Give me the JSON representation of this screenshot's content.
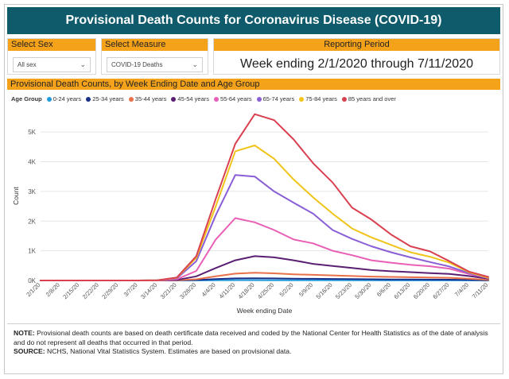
{
  "title": "Provisional Death Counts for Coronavirus Disease (COVID-19)",
  "filters": {
    "sex": {
      "label": "Select Sex",
      "value": "All sex"
    },
    "measure": {
      "label": "Select Measure",
      "value": "COVID-19 Deaths"
    },
    "period": {
      "label": "Reporting Period",
      "value": "Week ending 2/1/2020 through 7/11/2020"
    }
  },
  "chart_header": "Provisional Death Counts, by Week Ending Date and Age Group",
  "notes": {
    "note_label": "NOTE:",
    "note_text": "Provisional death counts are based on death certificate data received and coded by the National Center for Health Statistics as of the date of analysis and do not represent all deaths that occurred in that period.",
    "source_label": "SOURCE:",
    "source_text": "NCHS, National Vital Statistics System. Estimates are based on provisional data."
  },
  "chart_data": {
    "type": "line",
    "title": "Provisional Death Counts, by Week Ending Date and Age Group",
    "legend_title": "Age Group",
    "xlabel": "Week ending Date",
    "ylabel": "Count",
    "ylim": [
      0,
      5700
    ],
    "y_ticks": [
      0,
      1000,
      2000,
      3000,
      4000,
      5000
    ],
    "y_tick_labels": [
      "0K",
      "1K",
      "2K",
      "3K",
      "4K",
      "5K"
    ],
    "x": [
      "2/1/20",
      "2/8/20",
      "2/15/20",
      "2/22/20",
      "2/29/20",
      "3/7/20",
      "3/14/20",
      "3/21/20",
      "3/28/20",
      "4/4/20",
      "4/11/20",
      "4/18/20",
      "4/25/20",
      "5/2/20",
      "5/9/20",
      "5/16/20",
      "5/23/20",
      "5/30/20",
      "6/6/20",
      "6/13/20",
      "6/20/20",
      "6/27/20",
      "7/4/20",
      "7/11/20"
    ],
    "x_tick_labels": [
      "2/1/20",
      "2/8/20",
      "2/15/20",
      "2/22/20",
      "2/29/20",
      "3/7/20",
      "3/14/20",
      "3/21/20",
      "3/28/20",
      "4/4/20",
      "4/11/20",
      "4/18/20",
      "4/25/20",
      "5/2/20",
      "5/9/20",
      "5/16/20",
      "5/23/20",
      "5/30/20",
      "6/6/20",
      "6/13/20",
      "6/20/20",
      "6/27/20",
      "7/4/20",
      "7/11/20"
    ],
    "series": [
      {
        "name": "0-24 years",
        "color": "#1f9bde",
        "values": [
          0,
          0,
          0,
          0,
          0,
          0,
          0,
          1,
          4,
          8,
          10,
          10,
          9,
          8,
          7,
          6,
          5,
          5,
          4,
          4,
          4,
          4,
          3,
          1
        ]
      },
      {
        "name": "25-34 years",
        "color": "#1a2f8a",
        "values": [
          0,
          0,
          0,
          0,
          0,
          0,
          0,
          3,
          15,
          45,
          70,
          75,
          70,
          60,
          55,
          50,
          45,
          40,
          35,
          33,
          30,
          28,
          20,
          8
        ]
      },
      {
        "name": "35-44 years",
        "color": "#e8704a",
        "values": [
          0,
          0,
          0,
          0,
          0,
          0,
          1,
          8,
          40,
          140,
          230,
          260,
          240,
          210,
          190,
          170,
          150,
          130,
          120,
          110,
          100,
          90,
          60,
          20
        ]
      },
      {
        "name": "45-54 years",
        "color": "#5a1f73",
        "values": [
          0,
          0,
          0,
          0,
          0,
          0,
          2,
          20,
          140,
          420,
          680,
          820,
          780,
          680,
          560,
          490,
          420,
          350,
          310,
          280,
          250,
          220,
          150,
          60
        ]
      },
      {
        "name": "55-64 years",
        "color": "#e85fb5",
        "values": [
          0,
          0,
          0,
          0,
          0,
          0,
          3,
          40,
          320,
          1380,
          2100,
          1960,
          1700,
          1380,
          1250,
          1000,
          850,
          680,
          600,
          530,
          480,
          400,
          220,
          80
        ]
      },
      {
        "name": "65-74 years",
        "color": "#8a5ed6",
        "values": [
          0,
          0,
          0,
          0,
          0,
          0,
          5,
          70,
          650,
          2200,
          3550,
          3500,
          3000,
          2620,
          2250,
          1700,
          1400,
          1150,
          950,
          780,
          620,
          470,
          250,
          80
        ]
      },
      {
        "name": "75-84 years",
        "color": "#f0c419",
        "values": [
          0,
          0,
          0,
          0,
          0,
          0,
          6,
          90,
          760,
          2500,
          4350,
          4550,
          4100,
          3400,
          2800,
          2250,
          1750,
          1450,
          1200,
          950,
          800,
          600,
          280,
          90
        ]
      },
      {
        "name": "85 years and over",
        "color": "#d94050",
        "values": [
          0,
          0,
          0,
          0,
          0,
          0,
          7,
          100,
          820,
          2750,
          4600,
          5600,
          5400,
          4750,
          3950,
          3300,
          2450,
          2050,
          1550,
          1150,
          980,
          650,
          300,
          120
        ]
      }
    ]
  }
}
